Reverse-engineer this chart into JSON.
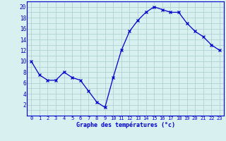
{
  "hours": [
    0,
    1,
    2,
    3,
    4,
    5,
    6,
    7,
    8,
    9,
    10,
    11,
    12,
    13,
    14,
    15,
    16,
    17,
    18,
    19,
    20,
    21,
    22,
    23
  ],
  "temperatures": [
    10,
    7.5,
    6.5,
    6.5,
    8,
    7,
    6.5,
    4.5,
    2.5,
    1.5,
    7,
    12,
    15.5,
    17.5,
    19,
    20,
    19.5,
    19,
    19,
    17,
    15.5,
    14.5,
    13,
    12
  ],
  "line_color": "#0000cc",
  "marker": "x",
  "bg_color": "#d8f0f0",
  "grid_color": "#aacccc",
  "xlabel": "Graphe des températures (°c)",
  "xlabel_color": "#0000cc",
  "tick_color": "#0000cc",
  "xlim": [
    -0.5,
    23.5
  ],
  "ylim": [
    0,
    21
  ],
  "yticks": [
    2,
    4,
    6,
    8,
    10,
    12,
    14,
    16,
    18,
    20
  ],
  "xticks": [
    0,
    1,
    2,
    3,
    4,
    5,
    6,
    7,
    8,
    9,
    10,
    11,
    12,
    13,
    14,
    15,
    16,
    17,
    18,
    19,
    20,
    21,
    22,
    23
  ]
}
